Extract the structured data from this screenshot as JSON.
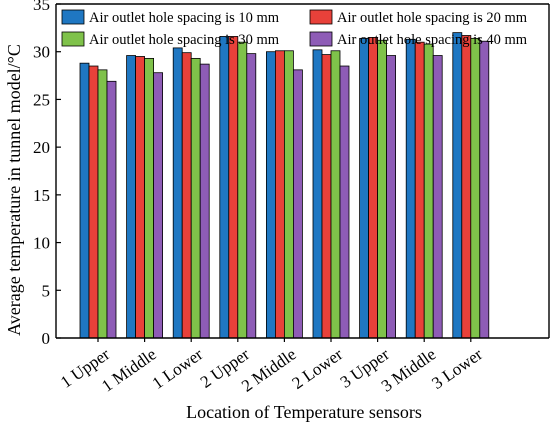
{
  "chart_data": {
    "type": "bar",
    "categories": [
      "1 Upper",
      "1 Middle",
      "1 Lower",
      "2 Upper",
      "2 Middle",
      "2 Lower",
      "3 Upper",
      "3 Middle",
      "3 Lower"
    ],
    "series": [
      {
        "name": "Air outlet hole spacing is 10 mm",
        "color": "#1f77c2",
        "values": [
          28.8,
          29.6,
          30.4,
          31.6,
          30.0,
          30.2,
          31.4,
          31.3,
          32.0
        ]
      },
      {
        "name": "Air outlet hole spacing is 20 mm",
        "color": "#e8413a",
        "values": [
          28.5,
          29.5,
          29.9,
          31.6,
          30.1,
          29.7,
          31.5,
          31.0,
          31.7
        ]
      },
      {
        "name": "Air outlet hole spacing is 30 mm",
        "color": "#7fc24a",
        "values": [
          28.1,
          29.3,
          29.3,
          31.0,
          30.1,
          30.1,
          31.2,
          30.8,
          31.4
        ]
      },
      {
        "name": "Air outlet hole spacing is 40 mm",
        "color": "#8e5cb6",
        "values": [
          26.9,
          27.8,
          28.7,
          29.8,
          28.1,
          28.5,
          29.6,
          29.6,
          31.1
        ]
      }
    ],
    "xlabel": "Location of Temperature sensors",
    "ylabel": "Average temperature in tunnel model/°C",
    "ylim": [
      0,
      35
    ],
    "yticks": [
      0,
      5,
      10,
      15,
      20,
      25,
      30,
      35
    ],
    "legend_position": "top, two columns",
    "grid": false
  }
}
